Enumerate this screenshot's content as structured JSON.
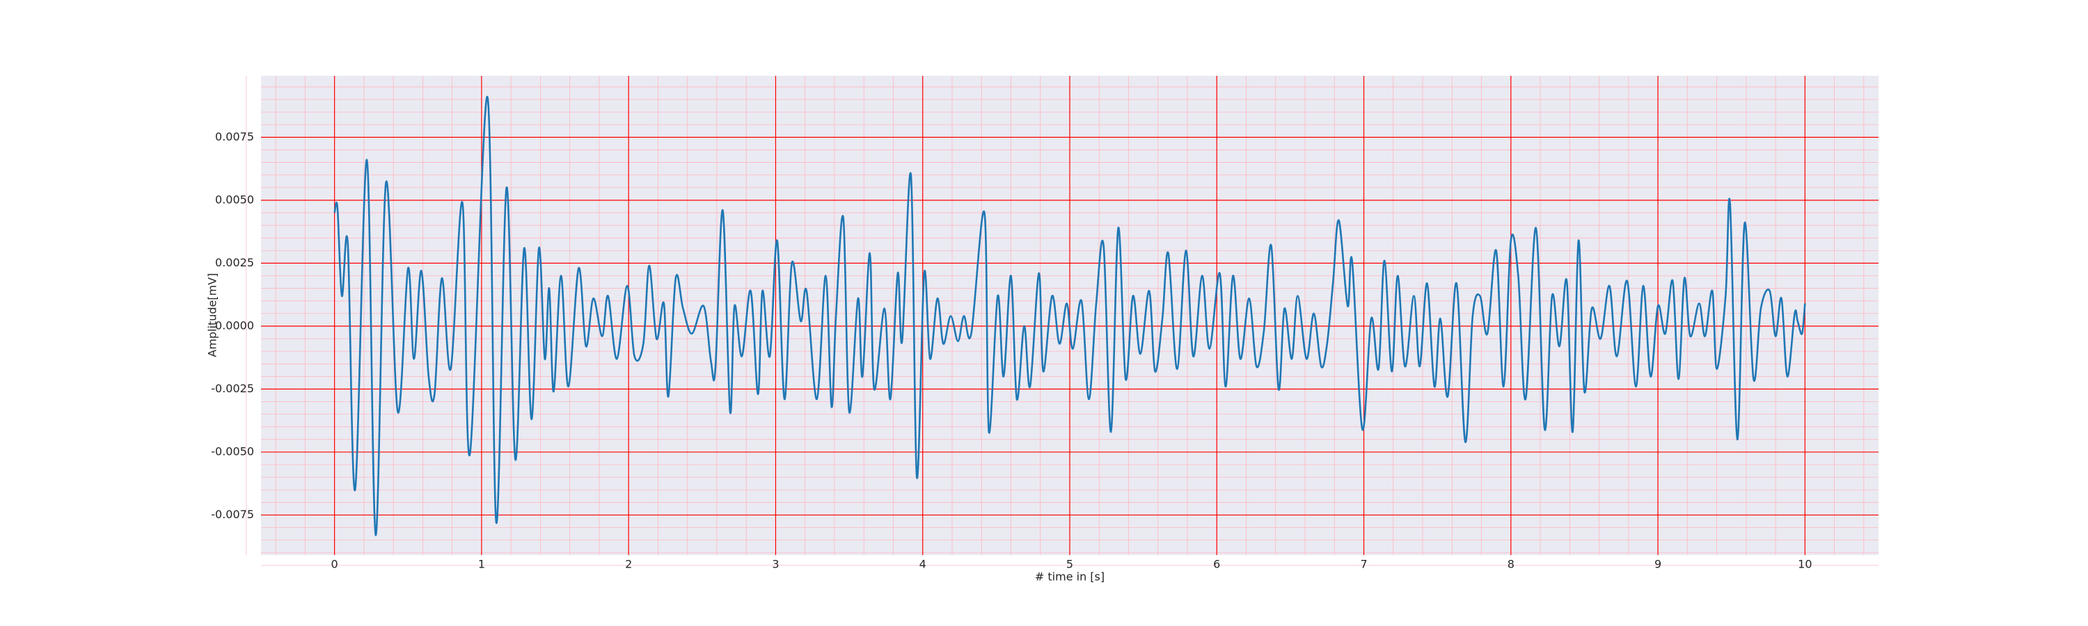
{
  "chart_data": {
    "type": "line",
    "xlabel": "# time in [s]",
    "ylabel": "Amplitude[mV]",
    "xlim": [
      -0.5,
      10.5
    ],
    "ylim": [
      -0.00909,
      0.00994
    ],
    "xticks": [
      0,
      1,
      2,
      3,
      4,
      5,
      6,
      7,
      8,
      9,
      10
    ],
    "yticks": [
      {
        "value": -0.0075,
        "label": "-0.0075"
      },
      {
        "value": -0.005,
        "label": "-0.0050"
      },
      {
        "value": -0.0025,
        "label": "-0.0025"
      },
      {
        "value": 0,
        "label": "0.0000"
      },
      {
        "value": 0.0025,
        "label": "0.0025"
      },
      {
        "value": 0.005,
        "label": "0.0050"
      },
      {
        "value": 0.0075,
        "label": "0.0075"
      }
    ],
    "grid": true,
    "minor_grid": true,
    "grid_color": "#ff0000",
    "minor_grid_color": "#ffb6c1",
    "background": "#eaeaf2",
    "series": [
      {
        "color": "#1f77b4",
        "x": [
          0,
          0.02,
          0.05,
          0.09,
          0.14,
          0.22,
          0.28,
          0.35,
          0.43,
          0.5,
          0.54,
          0.59,
          0.64,
          0.68,
          0.73,
          0.79,
          0.87,
          0.92,
          1.04,
          1.1,
          1.17,
          1.23,
          1.29,
          1.34,
          1.39,
          1.43,
          1.46,
          1.49,
          1.54,
          1.59,
          1.66,
          1.71,
          1.76,
          1.82,
          1.86,
          1.92,
          1.99,
          2.04,
          2.1,
          2.14,
          2.19,
          2.24,
          2.27,
          2.32,
          2.37,
          2.43,
          2.51,
          2.56,
          2.59,
          2.64,
          2.69,
          2.72,
          2.77,
          2.83,
          2.88,
          2.91,
          2.96,
          3.01,
          3.06,
          3.11,
          3.17,
          3.21,
          3.28,
          3.34,
          3.38,
          3.41,
          3.46,
          3.5,
          3.56,
          3.59,
          3.64,
          3.67,
          3.74,
          3.78,
          3.83,
          3.86,
          3.92,
          3.96,
          4.01,
          4.05,
          4.1,
          4.14,
          4.19,
          4.24,
          4.28,
          4.33,
          4.42,
          4.45,
          4.51,
          4.55,
          4.6,
          4.64,
          4.69,
          4.73,
          4.79,
          4.82,
          4.88,
          4.93,
          4.98,
          5.02,
          5.08,
          5.13,
          5.18,
          5.23,
          5.28,
          5.33,
          5.38,
          5.43,
          5.48,
          5.54,
          5.58,
          5.63,
          5.67,
          5.73,
          5.79,
          5.84,
          5.9,
          5.95,
          6.02,
          6.06,
          6.11,
          6.16,
          6.22,
          6.27,
          6.32,
          6.37,
          6.42,
          6.46,
          6.51,
          6.55,
          6.61,
          6.66,
          6.71,
          6.75,
          6.79,
          6.83,
          6.89,
          6.92,
          6.99,
          7.05,
          7.1,
          7.14,
          7.19,
          7.23,
          7.28,
          7.34,
          7.38,
          7.43,
          7.48,
          7.52,
          7.57,
          7.63,
          7.69,
          7.74,
          7.79,
          7.84,
          7.9,
          7.95,
          8.0,
          8.05,
          8.1,
          8.17,
          8.23,
          8.28,
          8.33,
          8.38,
          8.42,
          8.46,
          8.5,
          8.55,
          8.61,
          8.67,
          8.72,
          8.79,
          8.85,
          8.9,
          8.95,
          9.0,
          9.05,
          9.1,
          9.14,
          9.18,
          9.22,
          9.28,
          9.32,
          9.37,
          9.4,
          9.46,
          9.49,
          9.54,
          9.59,
          9.65,
          9.7,
          9.76,
          9.8,
          9.84,
          9.88,
          9.93,
          9.95,
          9.98,
          10.0
        ],
        "values": [
          0.0045,
          0.0047,
          0.0012,
          0.0033,
          -0.0065,
          0.0066,
          -0.0083,
          0.0057,
          -0.0034,
          0.0023,
          -0.0013,
          0.0022,
          -0.002,
          -0.0027,
          0.0019,
          -0.0017,
          0.0049,
          -0.0051,
          0.0091,
          -0.0078,
          0.0055,
          -0.0053,
          0.0031,
          -0.0037,
          0.0031,
          -0.0013,
          0.0015,
          -0.0026,
          0.002,
          -0.0024,
          0.0023,
          -0.0008,
          0.0011,
          -0.0004,
          0.0012,
          -0.0013,
          0.0016,
          -0.0012,
          -0.0007,
          0.0024,
          -0.0005,
          0.0009,
          -0.0028,
          0.0019,
          0.0007,
          -0.0003,
          0.0008,
          -0.0014,
          -0.0017,
          0.0046,
          -0.0034,
          0.0008,
          -0.0012,
          0.0014,
          -0.0027,
          0.0014,
          -0.0012,
          0.0034,
          -0.0029,
          0.0025,
          0.0002,
          0.0014,
          -0.0029,
          0.002,
          -0.0032,
          0.0004,
          0.0043,
          -0.0034,
          0.0011,
          -0.002,
          0.0029,
          -0.0025,
          0.0007,
          -0.0029,
          0.0021,
          -0.0006,
          0.006,
          -0.006,
          0.0021,
          -0.0013,
          0.0011,
          -0.0007,
          0.0004,
          -0.0006,
          0.0004,
          -0.0003,
          0.0045,
          -0.0042,
          0.0012,
          -0.002,
          0.002,
          -0.0029,
          0,
          -0.0024,
          0.0021,
          -0.0018,
          0.0012,
          -0.0007,
          0.0009,
          -0.0009,
          0.001,
          -0.0029,
          0.0009,
          0.0032,
          -0.0042,
          0.0039,
          -0.0021,
          0.0012,
          -0.0011,
          0.0014,
          -0.0018,
          0.0003,
          0.0029,
          -0.0017,
          0.003,
          -0.0012,
          0.002,
          -0.0009,
          0.0021,
          -0.0024,
          0.002,
          -0.0013,
          0.0011,
          -0.0016,
          -0.0002,
          0.0032,
          -0.0025,
          0.0007,
          -0.0013,
          0.0012,
          -0.0013,
          0.0005,
          -0.0016,
          -0.0007,
          0.0017,
          0.0042,
          0.0008,
          0.0026,
          -0.0041,
          0.0003,
          -0.0017,
          0.0026,
          -0.0018,
          0.002,
          -0.0016,
          0.0012,
          -0.0016,
          0.0017,
          -0.0024,
          0.0003,
          -0.0028,
          0.0017,
          -0.0046,
          0.0004,
          0.0012,
          -0.0003,
          0.003,
          -0.0024,
          0.0034,
          0.002,
          -0.0029,
          0.0039,
          -0.0041,
          0.0012,
          -0.0008,
          0.0018,
          -0.0042,
          0.0034,
          -0.0026,
          0.0007,
          -0.0005,
          0.0016,
          -0.0012,
          0.0018,
          -0.0024,
          0.0016,
          -0.002,
          0.0008,
          -0.0003,
          0.0018,
          -0.0021,
          0.0019,
          -0.0004,
          0.0009,
          -0.0004,
          0.0014,
          -0.0017,
          0.0012,
          0.0049,
          -0.0045,
          0.0041,
          -0.0021,
          0.0007,
          0.0014,
          -0.0004,
          0.0011,
          -0.002,
          0.0005,
          0.0002,
          -0.0003,
          0.0009
        ]
      }
    ]
  }
}
